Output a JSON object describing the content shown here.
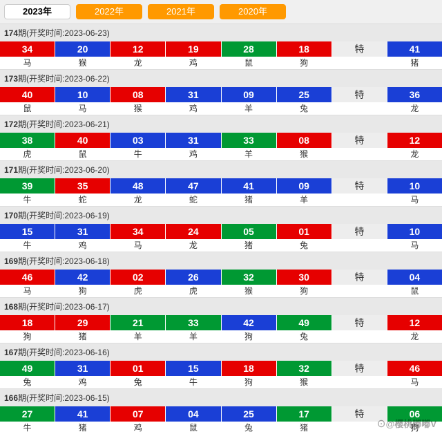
{
  "tabs": [
    {
      "label": "2023年",
      "active": true
    },
    {
      "label": "2022年",
      "active": false
    },
    {
      "label": "2021年",
      "active": false
    },
    {
      "label": "2020年",
      "active": false
    }
  ],
  "colors": {
    "red": "#e60000",
    "blue": "#1a3fd6",
    "green": "#009933",
    "grey": "#ededed",
    "tab_inactive": "#ff9900",
    "tab_active_bg": "#ffffff",
    "header_bg": "#e8e8e8",
    "page_bg": "#f0f0f0"
  },
  "special_label": "特",
  "header_prefix": "期(开奖时间:",
  "header_suffix": ")",
  "periods": [
    {
      "issue": "174",
      "date": "2023-06-23",
      "cells": [
        {
          "num": "34",
          "color": "red",
          "zodiac": "马"
        },
        {
          "num": "20",
          "color": "blue",
          "zodiac": "猴"
        },
        {
          "num": "12",
          "color": "red",
          "zodiac": "龙"
        },
        {
          "num": "19",
          "color": "red",
          "zodiac": "鸡"
        },
        {
          "num": "28",
          "color": "green",
          "zodiac": "鼠"
        },
        {
          "num": "18",
          "color": "red",
          "zodiac": "狗"
        },
        {
          "num": "特",
          "color": "grey",
          "zodiac": ""
        },
        {
          "num": "41",
          "color": "blue",
          "zodiac": "猪"
        }
      ]
    },
    {
      "issue": "173",
      "date": "2023-06-22",
      "cells": [
        {
          "num": "40",
          "color": "red",
          "zodiac": "鼠"
        },
        {
          "num": "10",
          "color": "blue",
          "zodiac": "马"
        },
        {
          "num": "08",
          "color": "red",
          "zodiac": "猴"
        },
        {
          "num": "31",
          "color": "blue",
          "zodiac": "鸡"
        },
        {
          "num": "09",
          "color": "blue",
          "zodiac": "羊"
        },
        {
          "num": "25",
          "color": "blue",
          "zodiac": "兔"
        },
        {
          "num": "特",
          "color": "grey",
          "zodiac": ""
        },
        {
          "num": "36",
          "color": "blue",
          "zodiac": "龙"
        }
      ]
    },
    {
      "issue": "172",
      "date": "2023-06-21",
      "cells": [
        {
          "num": "38",
          "color": "green",
          "zodiac": "虎"
        },
        {
          "num": "40",
          "color": "red",
          "zodiac": "鼠"
        },
        {
          "num": "03",
          "color": "blue",
          "zodiac": "牛"
        },
        {
          "num": "31",
          "color": "blue",
          "zodiac": "鸡"
        },
        {
          "num": "33",
          "color": "green",
          "zodiac": "羊"
        },
        {
          "num": "08",
          "color": "red",
          "zodiac": "猴"
        },
        {
          "num": "特",
          "color": "grey",
          "zodiac": ""
        },
        {
          "num": "12",
          "color": "red",
          "zodiac": "龙"
        }
      ]
    },
    {
      "issue": "171",
      "date": "2023-06-20",
      "cells": [
        {
          "num": "39",
          "color": "green",
          "zodiac": "牛"
        },
        {
          "num": "35",
          "color": "red",
          "zodiac": "蛇"
        },
        {
          "num": "48",
          "color": "blue",
          "zodiac": "龙"
        },
        {
          "num": "47",
          "color": "blue",
          "zodiac": "蛇"
        },
        {
          "num": "41",
          "color": "blue",
          "zodiac": "猪"
        },
        {
          "num": "09",
          "color": "blue",
          "zodiac": "羊"
        },
        {
          "num": "特",
          "color": "grey",
          "zodiac": ""
        },
        {
          "num": "10",
          "color": "blue",
          "zodiac": "马"
        }
      ]
    },
    {
      "issue": "170",
      "date": "2023-06-19",
      "cells": [
        {
          "num": "15",
          "color": "blue",
          "zodiac": "牛"
        },
        {
          "num": "31",
          "color": "blue",
          "zodiac": "鸡"
        },
        {
          "num": "34",
          "color": "red",
          "zodiac": "马"
        },
        {
          "num": "24",
          "color": "red",
          "zodiac": "龙"
        },
        {
          "num": "05",
          "color": "green",
          "zodiac": "猪"
        },
        {
          "num": "01",
          "color": "red",
          "zodiac": "兔"
        },
        {
          "num": "特",
          "color": "grey",
          "zodiac": ""
        },
        {
          "num": "10",
          "color": "blue",
          "zodiac": "马"
        }
      ]
    },
    {
      "issue": "169",
      "date": "2023-06-18",
      "cells": [
        {
          "num": "46",
          "color": "red",
          "zodiac": "马"
        },
        {
          "num": "42",
          "color": "blue",
          "zodiac": "狗"
        },
        {
          "num": "02",
          "color": "red",
          "zodiac": "虎"
        },
        {
          "num": "26",
          "color": "blue",
          "zodiac": "虎"
        },
        {
          "num": "32",
          "color": "green",
          "zodiac": "猴"
        },
        {
          "num": "30",
          "color": "red",
          "zodiac": "狗"
        },
        {
          "num": "特",
          "color": "grey",
          "zodiac": ""
        },
        {
          "num": "04",
          "color": "blue",
          "zodiac": "鼠"
        }
      ]
    },
    {
      "issue": "168",
      "date": "2023-06-17",
      "cells": [
        {
          "num": "18",
          "color": "red",
          "zodiac": "狗"
        },
        {
          "num": "29",
          "color": "red",
          "zodiac": "猪"
        },
        {
          "num": "21",
          "color": "green",
          "zodiac": "羊"
        },
        {
          "num": "33",
          "color": "green",
          "zodiac": "羊"
        },
        {
          "num": "42",
          "color": "blue",
          "zodiac": "狗"
        },
        {
          "num": "49",
          "color": "green",
          "zodiac": "兔"
        },
        {
          "num": "特",
          "color": "grey",
          "zodiac": ""
        },
        {
          "num": "12",
          "color": "red",
          "zodiac": "龙"
        }
      ]
    },
    {
      "issue": "167",
      "date": "2023-06-16",
      "cells": [
        {
          "num": "49",
          "color": "green",
          "zodiac": "兔"
        },
        {
          "num": "31",
          "color": "blue",
          "zodiac": "鸡"
        },
        {
          "num": "01",
          "color": "red",
          "zodiac": "兔"
        },
        {
          "num": "15",
          "color": "blue",
          "zodiac": "牛"
        },
        {
          "num": "18",
          "color": "red",
          "zodiac": "狗"
        },
        {
          "num": "32",
          "color": "green",
          "zodiac": "猴"
        },
        {
          "num": "特",
          "color": "grey",
          "zodiac": ""
        },
        {
          "num": "46",
          "color": "red",
          "zodiac": "马"
        }
      ]
    },
    {
      "issue": "166",
      "date": "2023-06-15",
      "cells": [
        {
          "num": "27",
          "color": "green",
          "zodiac": "牛"
        },
        {
          "num": "41",
          "color": "blue",
          "zodiac": "猪"
        },
        {
          "num": "07",
          "color": "red",
          "zodiac": "鸡"
        },
        {
          "num": "04",
          "color": "blue",
          "zodiac": "鼠"
        },
        {
          "num": "25",
          "color": "blue",
          "zodiac": "兔"
        },
        {
          "num": "17",
          "color": "green",
          "zodiac": "猪"
        },
        {
          "num": "特",
          "color": "grey",
          "zodiac": ""
        },
        {
          "num": "06",
          "color": "green",
          "zodiac": "狗"
        }
      ]
    }
  ],
  "watermark": "⊙@樱桃嘟嘟V"
}
